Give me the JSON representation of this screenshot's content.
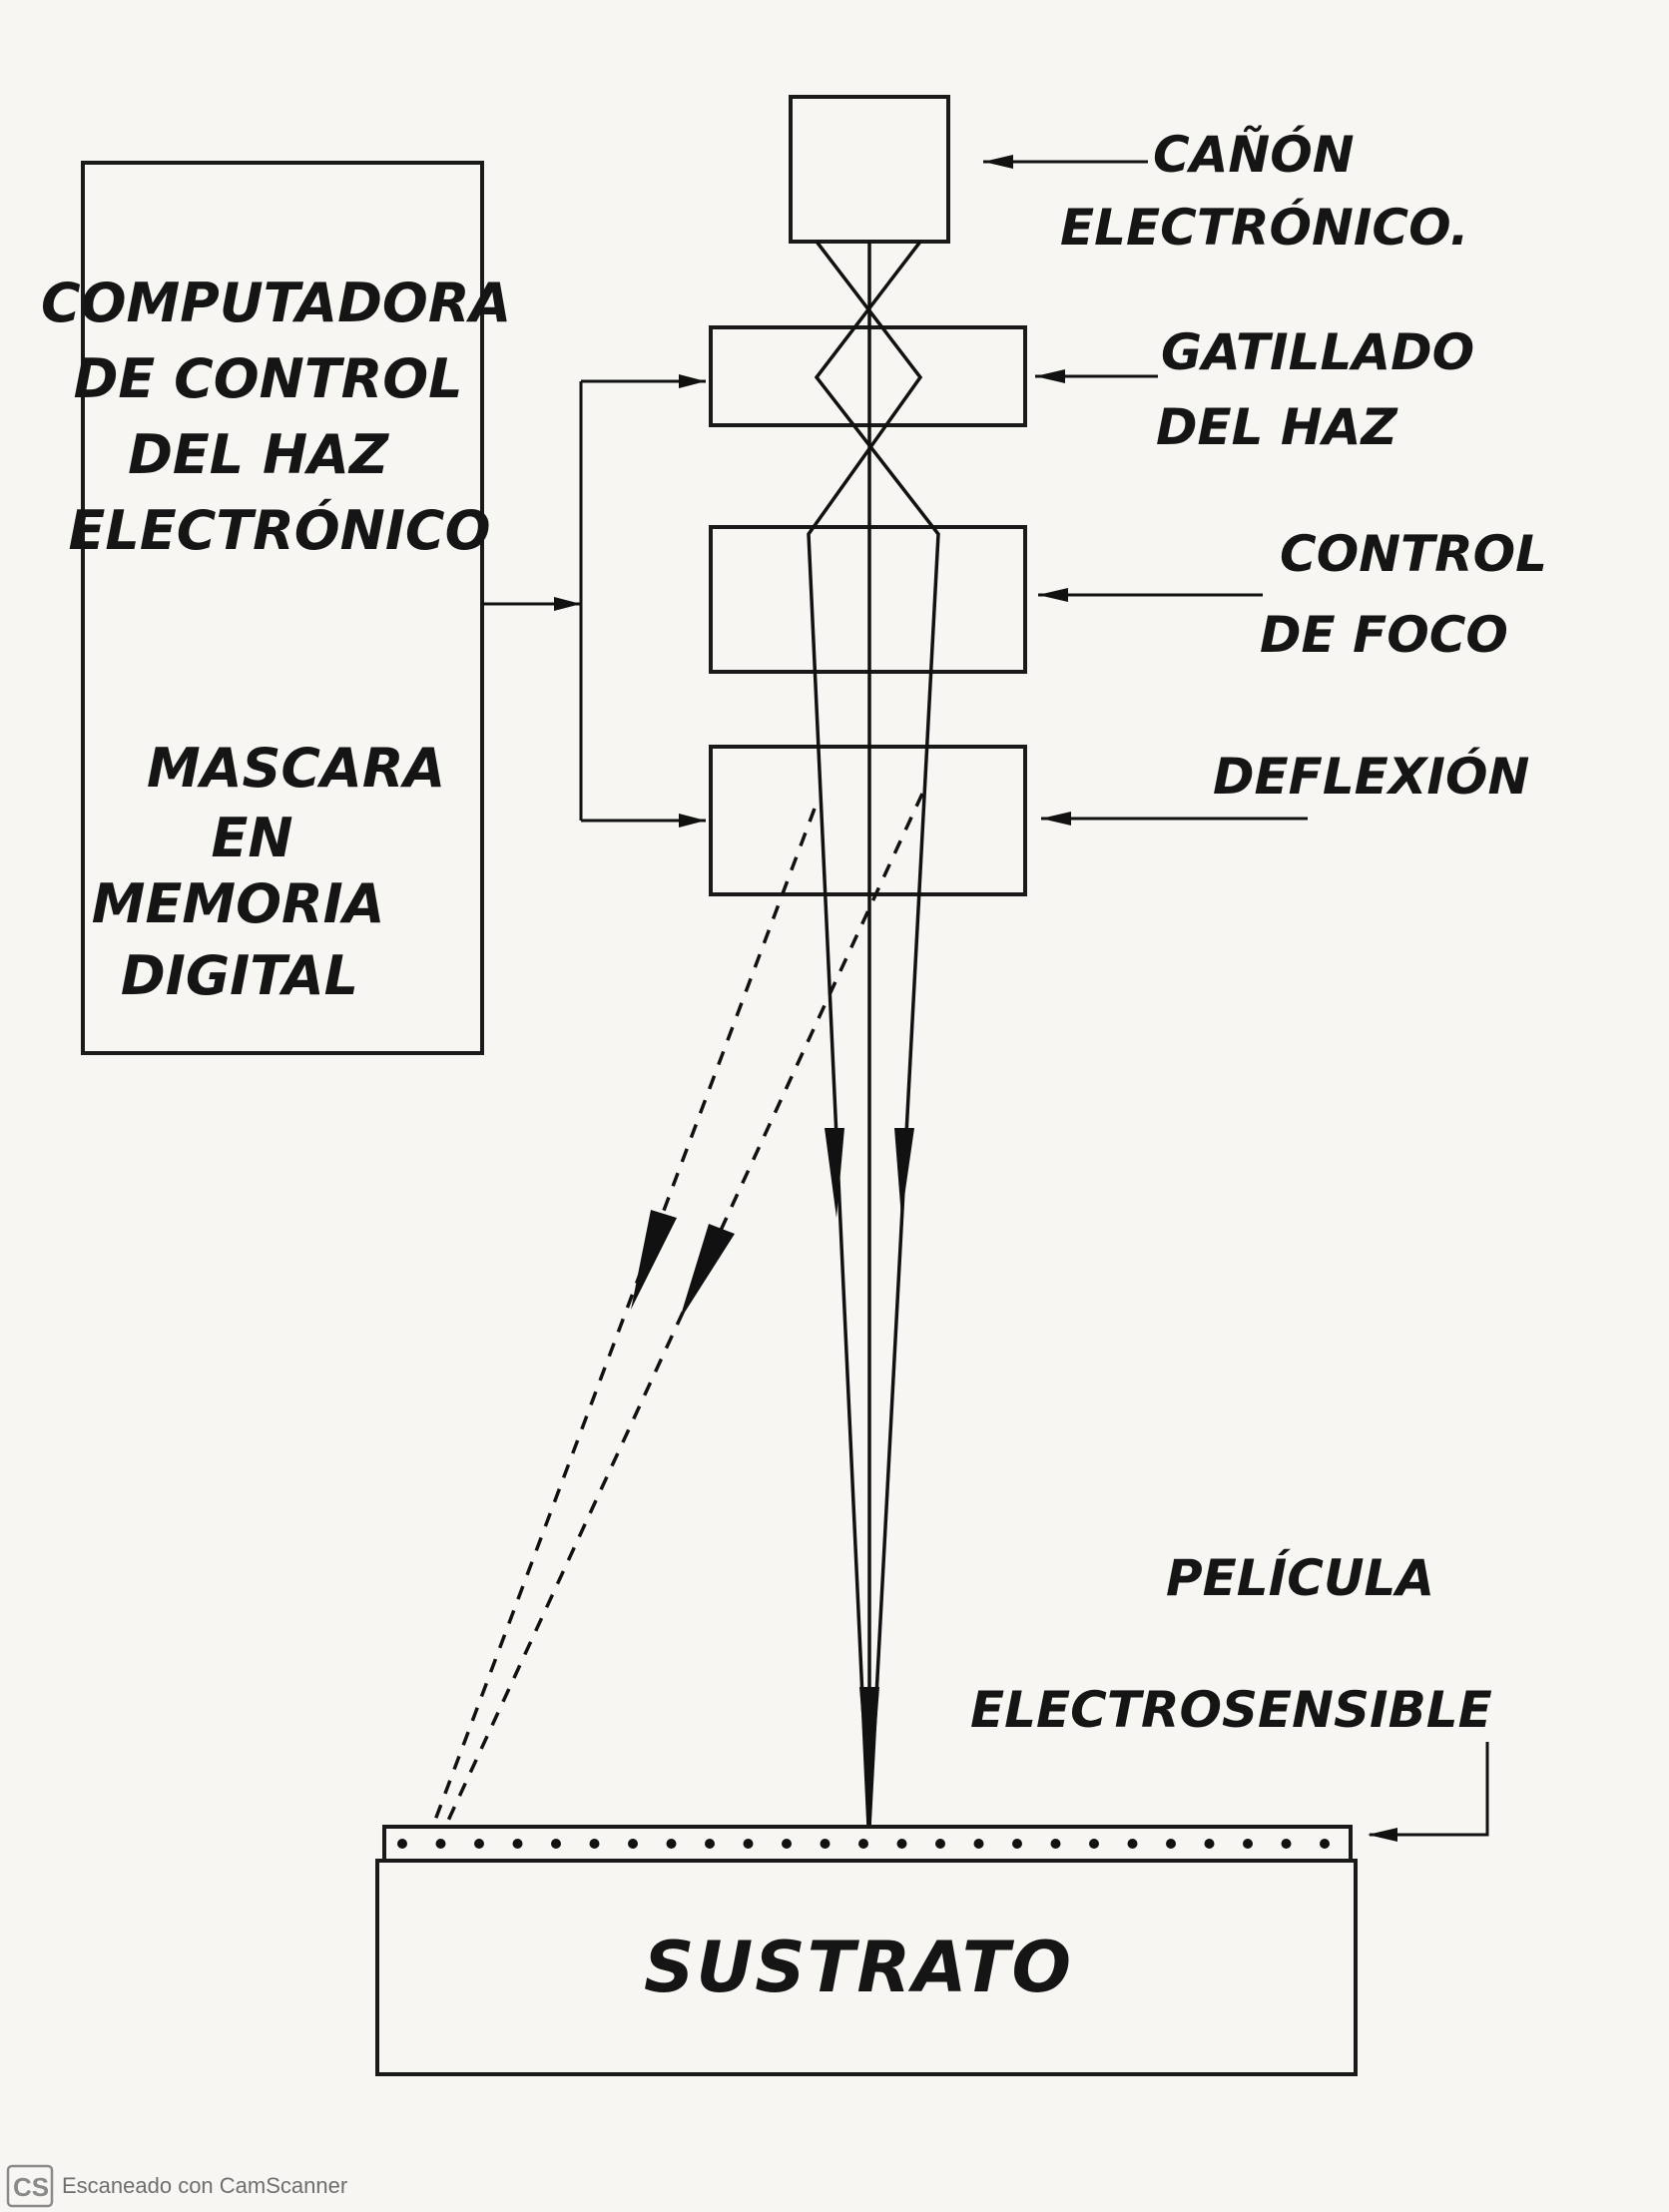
{
  "labels": {
    "computer": [
      "COMPUTADORA",
      "DE CONTROL",
      "DEL HAZ",
      "ELECTRÓNICO"
    ],
    "mask": [
      "MASCARA",
      "EN",
      "MEMORIA",
      "DIGITAL"
    ],
    "gun": [
      "CAÑÓN",
      "ELECTRÓNICO."
    ],
    "blanking": [
      "GATILLADO",
      "DEL HAZ"
    ],
    "focus": [
      "CONTROL",
      "DE FOCO"
    ],
    "deflection": [
      "DEFLEXIÓN"
    ],
    "film": [
      "PELÍCULA",
      "ELECTROSENSIBLE"
    ],
    "substrate": "SUSTRATO"
  },
  "footer": {
    "logo": "CS",
    "text": "Escaneado con CamScanner"
  },
  "colors": {
    "ink": "#111111",
    "paper": "#f7f6f3",
    "watermark": "#6e6e6e"
  }
}
